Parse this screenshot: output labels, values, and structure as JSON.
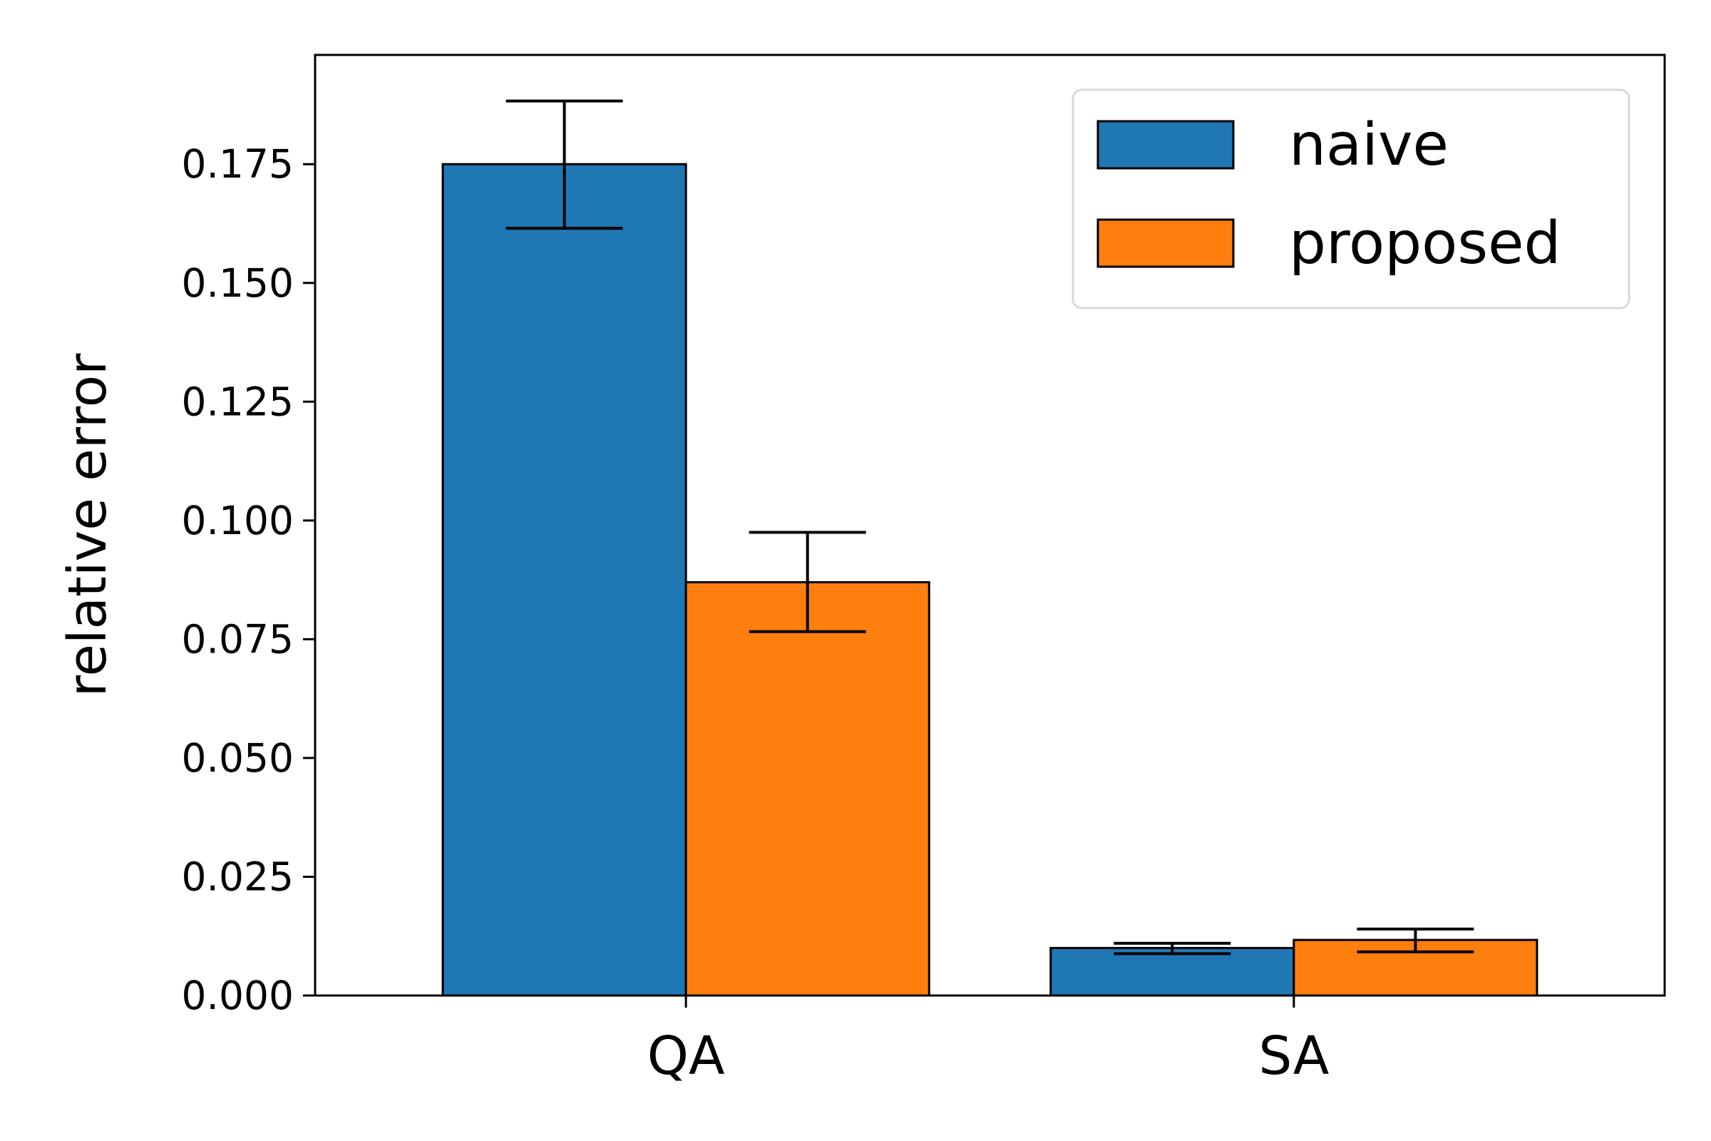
{
  "chart_data": {
    "type": "bar",
    "categories": [
      "QA",
      "SA"
    ],
    "series": [
      {
        "name": "naive",
        "color": "#1f77b4",
        "values": [
          0.175,
          0.01
        ],
        "err_low": [
          0.1615,
          0.0088
        ],
        "err_high": [
          0.1883,
          0.011
        ]
      },
      {
        "name": "proposed",
        "color": "#ff7f0e",
        "values": [
          0.087,
          0.0117
        ],
        "err_low": [
          0.0766,
          0.0092
        ],
        "err_high": [
          0.0975,
          0.014
        ]
      }
    ],
    "title": "",
    "xlabel": "",
    "ylabel": "relative error",
    "ylim": [
      0,
      0.198
    ],
    "yticks": [
      0.0,
      0.025,
      0.05,
      0.075,
      0.1,
      0.125,
      0.15,
      0.175
    ],
    "ytick_labels": [
      "0.000",
      "0.025",
      "0.050",
      "0.075",
      "0.100",
      "0.125",
      "0.150",
      "0.175"
    ],
    "grid": false,
    "legend_position": "top-right"
  }
}
